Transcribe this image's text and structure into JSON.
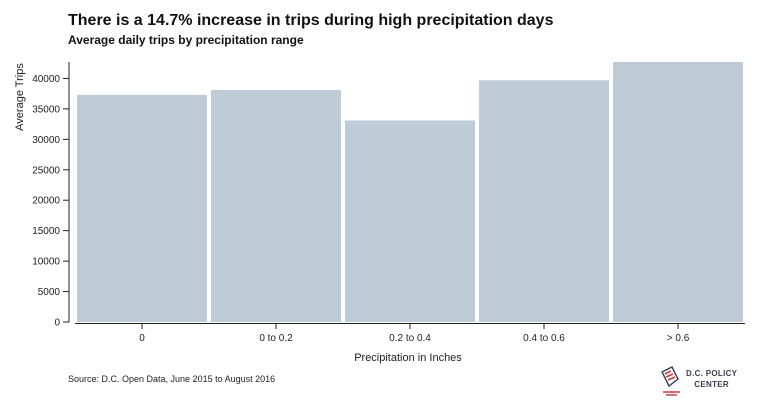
{
  "chart_data": {
    "type": "bar",
    "title": "There is a 14.7% increase in trips during high precipitation days",
    "subtitle": "Average daily trips by precipitation range",
    "xlabel": "Precipitation in Inches",
    "ylabel": "Average Trips",
    "categories": [
      "0",
      "0 to 0.2",
      "0.2 to 0.4",
      "0.4 to 0.6",
      "> 0.6"
    ],
    "values": [
      37300,
      38100,
      33100,
      39700,
      42700
    ],
    "ylim": [
      0,
      42700
    ],
    "yticks": [
      0,
      5000,
      10000,
      15000,
      20000,
      25000,
      30000,
      35000,
      40000
    ],
    "ytick_labels": [
      "0",
      "5000",
      "10000",
      "15000",
      "20000",
      "25000",
      "30000",
      "35000",
      "40000"
    ],
    "bar_color": "#bfcbd6",
    "grid": false,
    "legend": "none"
  },
  "footer": {
    "source": "Source: D.C. Open Data, June 2015 to August 2016"
  },
  "logo": {
    "line1": "D.C. POLICY",
    "line2": "CENTER"
  },
  "colors": {
    "bar": "#bfcbd6",
    "axis": "#222222",
    "logo_red": "#d8343b",
    "logo_navy": "#3a3f55"
  }
}
